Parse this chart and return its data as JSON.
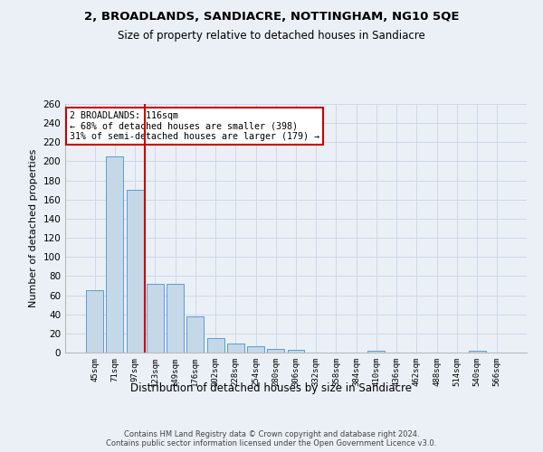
{
  "title": "2, BROADLANDS, SANDIACRE, NOTTINGHAM, NG10 5QE",
  "subtitle": "Size of property relative to detached houses in Sandiacre",
  "xlabel": "Distribution of detached houses by size in Sandiacre",
  "ylabel": "Number of detached properties",
  "footer_line1": "Contains HM Land Registry data © Crown copyright and database right 2024.",
  "footer_line2": "Contains public sector information licensed under the Open Government Licence v3.0.",
  "categories": [
    "45sqm",
    "71sqm",
    "97sqm",
    "123sqm",
    "149sqm",
    "176sqm",
    "202sqm",
    "228sqm",
    "254sqm",
    "280sqm",
    "306sqm",
    "332sqm",
    "358sqm",
    "384sqm",
    "410sqm",
    "436sqm",
    "462sqm",
    "488sqm",
    "514sqm",
    "540sqm",
    "566sqm"
  ],
  "values": [
    65,
    205,
    170,
    72,
    72,
    38,
    15,
    9,
    7,
    4,
    3,
    0,
    0,
    0,
    2,
    0,
    0,
    0,
    0,
    2,
    0
  ],
  "bar_color": "#c5d8e8",
  "bar_edge_color": "#5b9bd5",
  "grid_color": "#d0d8e8",
  "background_color": "#eaf0f6",
  "vline_x": 2.5,
  "vline_color": "#cc0000",
  "annotation_text": "2 BROADLANDS: 116sqm\n← 68% of detached houses are smaller (398)\n31% of semi-detached houses are larger (179) →",
  "annotation_box_color": "#ffffff",
  "annotation_box_edge_color": "#cc0000",
  "ylim": [
    0,
    260
  ],
  "yticks": [
    0,
    20,
    40,
    60,
    80,
    100,
    120,
    140,
    160,
    180,
    200,
    220,
    240,
    260
  ]
}
